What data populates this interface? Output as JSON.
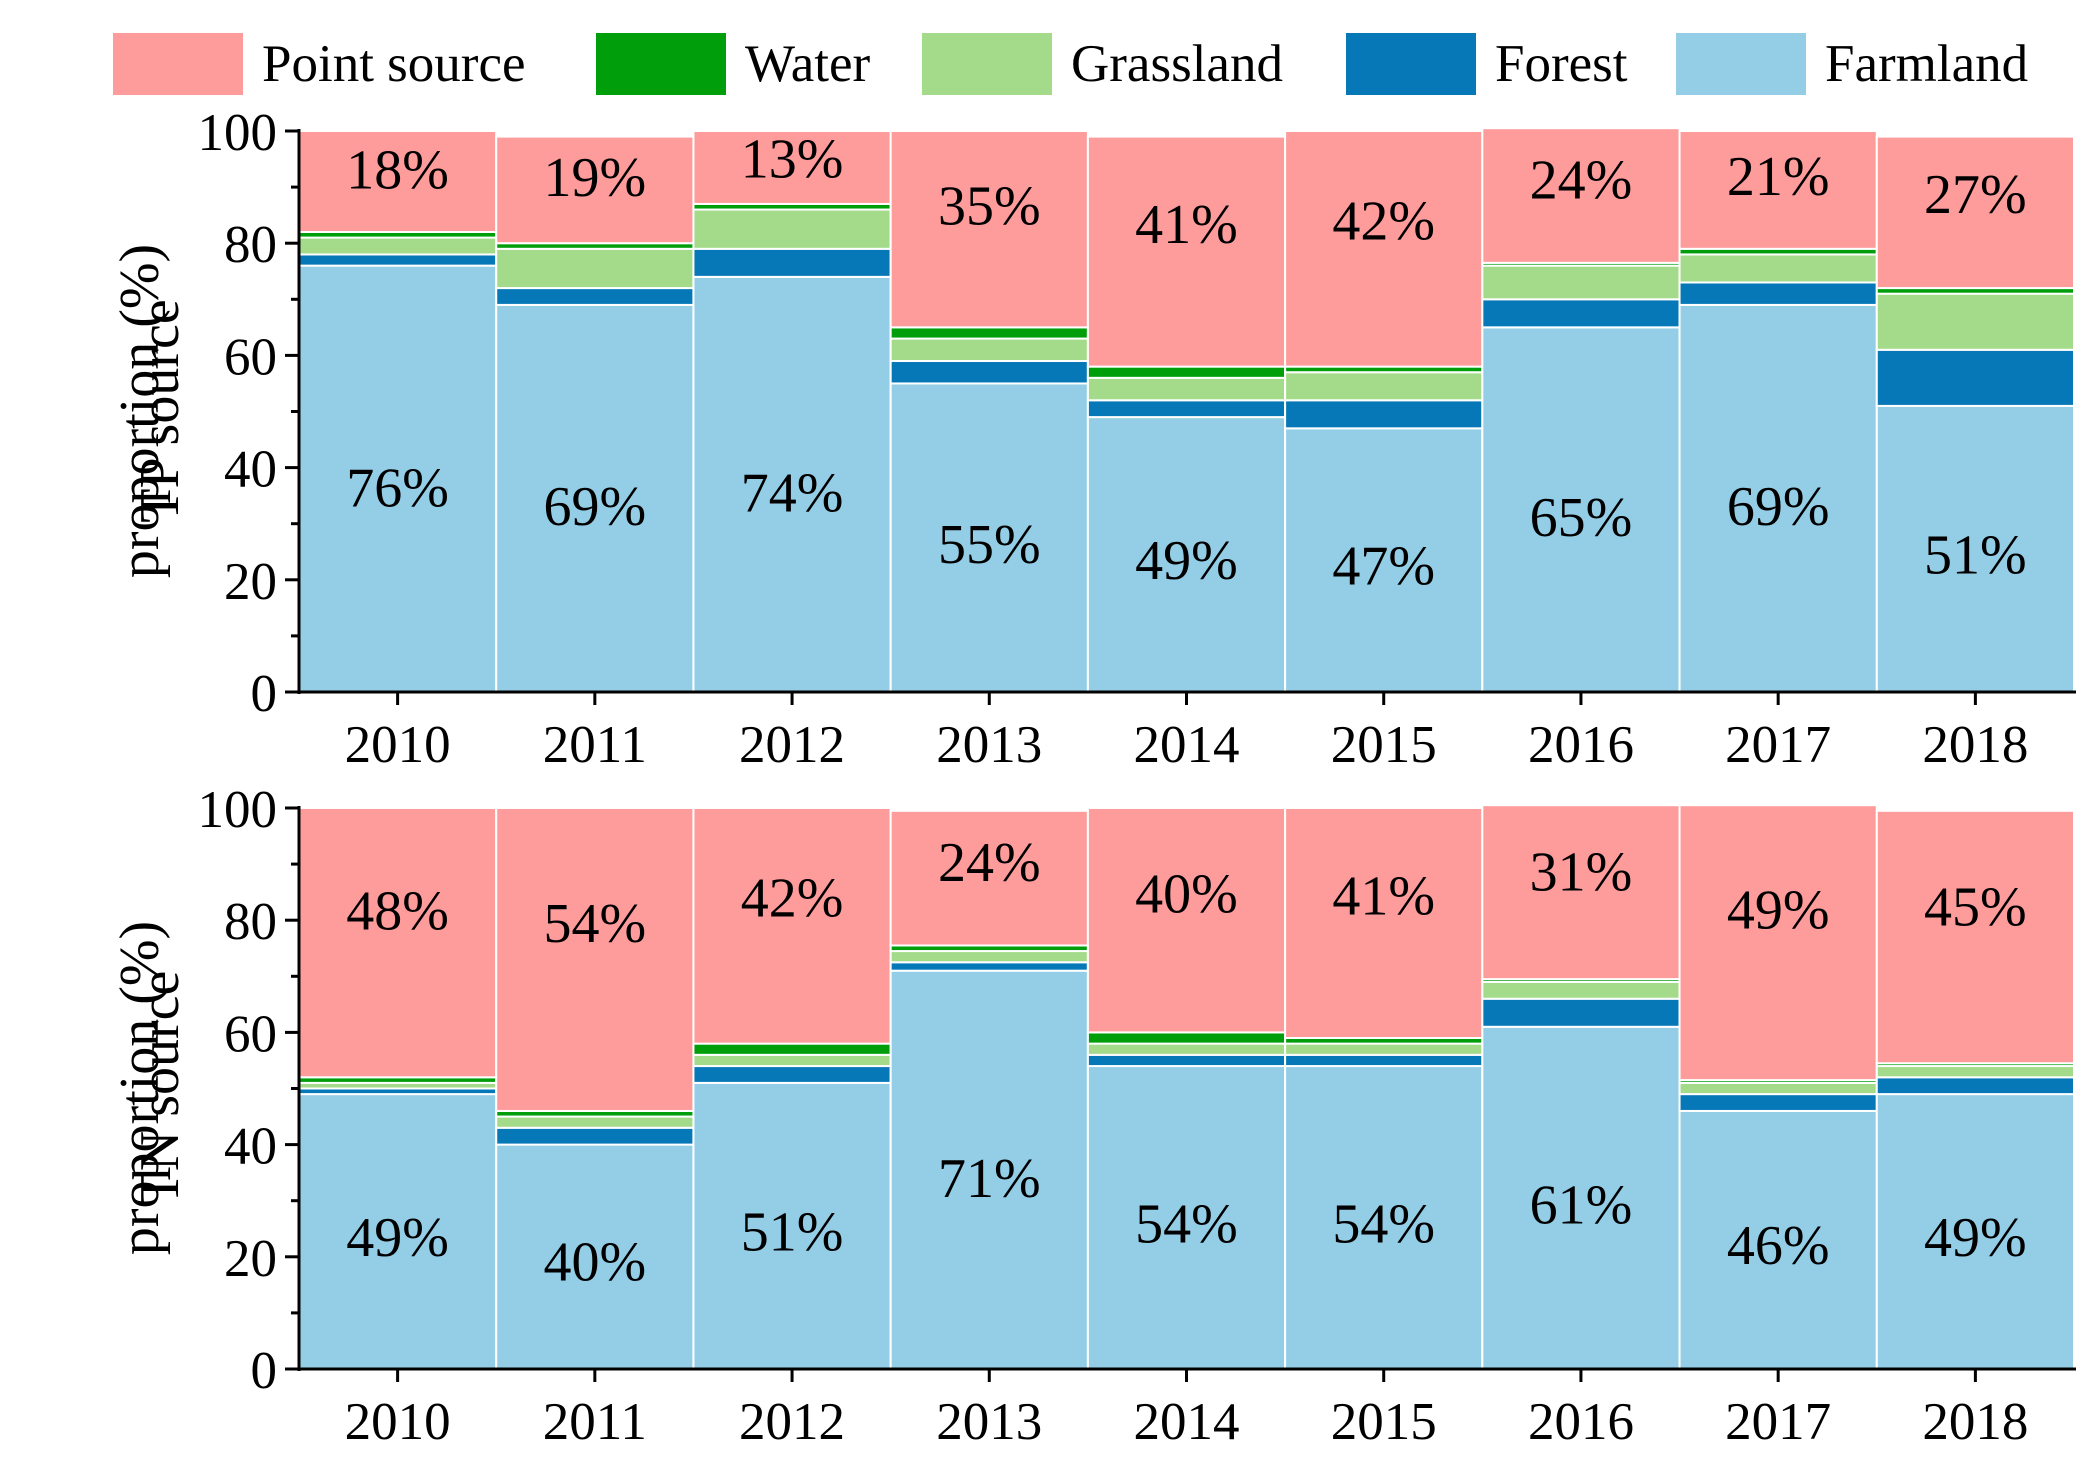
{
  "chart_data": [
    {
      "type": "bar",
      "stacked": true,
      "ylabel_line1": "TP source",
      "ylabel_line2": "proportion (%)",
      "ylim": [
        0,
        100
      ],
      "yticks": [
        0,
        20,
        40,
        60,
        80,
        100
      ],
      "categories": [
        "2010",
        "2011",
        "2012",
        "2013",
        "2014",
        "2015",
        "2016",
        "2017",
        "2018"
      ],
      "series": [
        {
          "name": "Farmland",
          "values": [
            76,
            69,
            74,
            55,
            49,
            47,
            65,
            69,
            51
          ],
          "labels": [
            "76%",
            "69%",
            "74%",
            "55%",
            "49%",
            "47%",
            "65%",
            "69%",
            "51%"
          ]
        },
        {
          "name": "Forest",
          "values": [
            2,
            3,
            5,
            4,
            3,
            5,
            5,
            4,
            10
          ],
          "labels": []
        },
        {
          "name": "Grassland",
          "values": [
            3,
            7,
            7,
            4,
            4,
            5,
            6,
            5,
            10
          ],
          "labels": []
        },
        {
          "name": "Water",
          "values": [
            1,
            1,
            1,
            2,
            2,
            1,
            0.5,
            1,
            1
          ],
          "labels": []
        },
        {
          "name": "Point source",
          "values": [
            18,
            19,
            13,
            35,
            41,
            42,
            24,
            21,
            27
          ],
          "labels": [
            "18%",
            "19%",
            "13%",
            "35%",
            "41%",
            "42%",
            "24%",
            "21%",
            "27%"
          ]
        }
      ]
    },
    {
      "type": "bar",
      "stacked": true,
      "ylabel_line1": "TN source",
      "ylabel_line2": "proportion (%)",
      "ylim": [
        0,
        100
      ],
      "yticks": [
        0,
        20,
        40,
        60,
        80,
        100
      ],
      "categories": [
        "2010",
        "2011",
        "2012",
        "2013",
        "2014",
        "2015",
        "2016",
        "2017",
        "2018"
      ],
      "series": [
        {
          "name": "Farmland",
          "values": [
            49,
            40,
            51,
            71,
            54,
            54,
            61,
            46,
            49
          ],
          "labels": [
            "49%",
            "40%",
            "51%",
            "71%",
            "54%",
            "54%",
            "61%",
            "46%",
            "49%"
          ]
        },
        {
          "name": "Forest",
          "values": [
            1,
            3,
            3,
            1.5,
            2,
            2,
            5,
            3,
            3
          ],
          "labels": []
        },
        {
          "name": "Grassland",
          "values": [
            1,
            2,
            2,
            2,
            2,
            2,
            3,
            2,
            2
          ],
          "labels": []
        },
        {
          "name": "Water",
          "values": [
            1,
            1,
            2,
            1,
            2,
            1,
            0.5,
            0.5,
            0.5
          ],
          "labels": []
        },
        {
          "name": "Point source",
          "values": [
            48,
            54,
            42,
            24,
            40,
            41,
            31,
            49,
            45
          ],
          "labels": [
            "48%",
            "54%",
            "42%",
            "24%",
            "40%",
            "41%",
            "31%",
            "49%",
            "45%"
          ]
        }
      ]
    }
  ],
  "legend": {
    "placement": "top",
    "items": [
      {
        "name": "Point source",
        "color": "#FE9B9B"
      },
      {
        "name": "Water",
        "color": "#009E0B"
      },
      {
        "name": "Grassland",
        "color": "#A3DB8A"
      },
      {
        "name": "Forest",
        "color": "#0678B7"
      },
      {
        "name": "Farmland",
        "color": "#93CDE6"
      }
    ]
  }
}
